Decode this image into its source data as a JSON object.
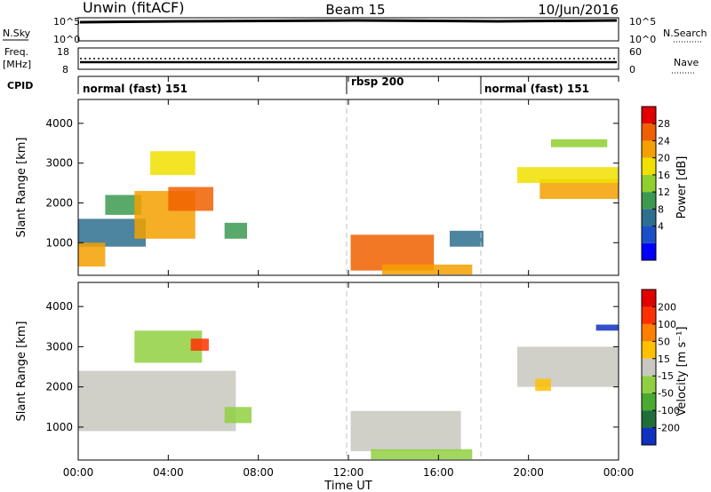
{
  "header": {
    "title": "Unwin (fitACF)",
    "beam": "Beam 15",
    "date": "10/Jun/2016"
  },
  "nsky_panel": {
    "label": "N.Sky",
    "left_ticks": [
      "10^5",
      "10^0"
    ],
    "right_ticks": [
      "10^5",
      "10^0"
    ],
    "right_label": "N.Search"
  },
  "freq_panel": {
    "label_line1": "Freq.",
    "label_line2": "[MHz]",
    "left_ticks": [
      "18",
      "8"
    ],
    "right_ticks": [
      "60",
      "0"
    ],
    "right_label": "Nave"
  },
  "cpid_panel": {
    "label": "CPID",
    "segments": [
      {
        "label": "normal (fast) 151",
        "start_hour": 0
      },
      {
        "label": "rbsp 200",
        "start_hour": 12
      },
      {
        "label": "normal (fast) 151",
        "start_hour": 18
      }
    ]
  },
  "time_axis": {
    "label": "Time UT",
    "ticks": [
      "00:00",
      "04:00",
      "08:00",
      "12:00",
      "16:00",
      "20:00",
      "00:00"
    ]
  },
  "power_panel": {
    "ylabel": "Slant Range [km]",
    "yticks": [
      "4000",
      "3000",
      "2000",
      "1000"
    ],
    "colorbar_label": "Power [dB]",
    "colorbar_ticks": [
      "28",
      "24",
      "20",
      "16",
      "12",
      "8",
      "4"
    ],
    "colors": [
      "#0000ff",
      "#1a4fc8",
      "#2e6e8e",
      "#3c9a50",
      "#8fcf2e",
      "#f0e000",
      "#f5a000",
      "#f06000",
      "#e00000"
    ]
  },
  "velocity_panel": {
    "ylabel": "Slant Range [km]",
    "yticks": [
      "4000",
      "3000",
      "2000",
      "1000"
    ],
    "colorbar_label": "Velocity [m s⁻¹]",
    "colorbar_ticks": [
      "200",
      "100",
      "50",
      "15",
      "-15",
      "-50",
      "-100",
      "-200"
    ],
    "colors": [
      "#1030c0",
      "#1f6e3a",
      "#4aaa30",
      "#90d040",
      "#c8c8c0",
      "#ffc000",
      "#ff8000",
      "#ff3000",
      "#e00000"
    ]
  },
  "chart_data": [
    {
      "type": "heatmap",
      "title": "Power",
      "xlabel": "Time UT",
      "ylabel": "Slant Range [km]",
      "xlim": [
        0,
        24
      ],
      "ylim": [
        180,
        4600
      ],
      "colorbar": {
        "label": "Power [dB]",
        "range": [
          0,
          32
        ]
      },
      "regions": [
        {
          "t": [
            0.0,
            3.0
          ],
          "r": [
            900,
            1600
          ],
          "value": 10
        },
        {
          "t": [
            0.0,
            1.2
          ],
          "r": [
            400,
            1000
          ],
          "value": 24
        },
        {
          "t": [
            1.2,
            2.8
          ],
          "r": [
            1700,
            2200
          ],
          "value": 12
        },
        {
          "t": [
            2.5,
            5.2
          ],
          "r": [
            1100,
            2300
          ],
          "value": 22
        },
        {
          "t": [
            4.0,
            6.0
          ],
          "r": [
            1800,
            2400
          ],
          "value": 26
        },
        {
          "t": [
            3.2,
            5.2
          ],
          "r": [
            2700,
            3300
          ],
          "value": 20
        },
        {
          "t": [
            6.5,
            7.5
          ],
          "r": [
            1100,
            1500
          ],
          "value": 14
        },
        {
          "t": [
            12.1,
            15.8
          ],
          "r": [
            300,
            1200
          ],
          "value": 28
        },
        {
          "t": [
            13.5,
            17.5
          ],
          "r": [
            200,
            450
          ],
          "value": 22
        },
        {
          "t": [
            16.5,
            18.0
          ],
          "r": [
            900,
            1300
          ],
          "value": 8
        },
        {
          "t": [
            20.5,
            24.0
          ],
          "r": [
            2100,
            2600
          ],
          "value": 22
        },
        {
          "t": [
            19.5,
            24.0
          ],
          "r": [
            2500,
            2900
          ],
          "value": 18
        },
        {
          "t": [
            21.0,
            23.5
          ],
          "r": [
            3400,
            3600
          ],
          "value": 16
        }
      ]
    },
    {
      "type": "heatmap",
      "title": "Velocity",
      "xlabel": "Time UT",
      "ylabel": "Slant Range [km]",
      "xlim": [
        0,
        24
      ],
      "ylim": [
        180,
        4600
      ],
      "colorbar": {
        "label": "Velocity [m s⁻¹]",
        "range": [
          -250,
          250
        ]
      },
      "regions": [
        {
          "t": [
            0.0,
            7.0
          ],
          "r": [
            900,
            2400
          ],
          "value": 0
        },
        {
          "t": [
            2.5,
            5.5
          ],
          "r": [
            2600,
            3400
          ],
          "value": -80
        },
        {
          "t": [
            5.0,
            5.8
          ],
          "r": [
            2900,
            3200
          ],
          "value": 150
        },
        {
          "t": [
            6.5,
            7.7
          ],
          "r": [
            1100,
            1500
          ],
          "value": -40
        },
        {
          "t": [
            12.1,
            17.0
          ],
          "r": [
            400,
            1400
          ],
          "value": 0
        },
        {
          "t": [
            13.0,
            17.5
          ],
          "r": [
            200,
            450
          ],
          "value": -60
        },
        {
          "t": [
            19.5,
            24.0
          ],
          "r": [
            2000,
            3000
          ],
          "value": 0
        },
        {
          "t": [
            20.3,
            21.0
          ],
          "r": [
            1900,
            2200
          ],
          "value": 60
        },
        {
          "t": [
            23.0,
            24.0
          ],
          "r": [
            3400,
            3550
          ],
          "value": -200
        }
      ]
    }
  ]
}
